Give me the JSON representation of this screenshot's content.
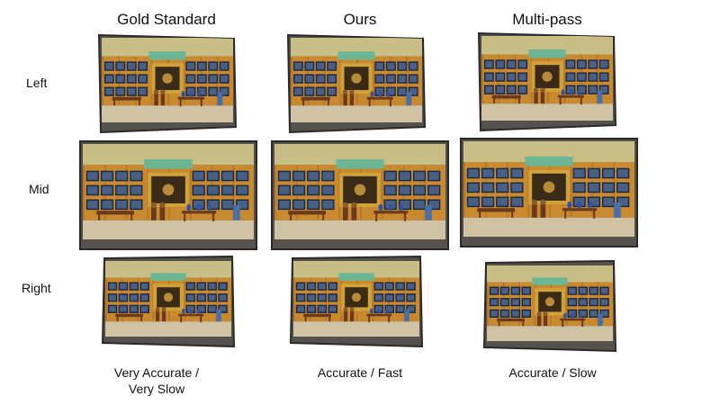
{
  "columns": [
    {
      "title": "Gold Standard",
      "caption_line1": "Very Accurate /",
      "caption_line2": "Very Slow"
    },
    {
      "title": "Ours",
      "caption_line1": "Accurate / Fast",
      "caption_line2": ""
    },
    {
      "title": "Multi-pass",
      "caption_line1": "Accurate / Slow",
      "caption_line2": ""
    }
  ],
  "rows": [
    {
      "label": "Left"
    },
    {
      "label": "Mid"
    },
    {
      "label": "Right"
    }
  ],
  "colors": {
    "bezel": "#55524d",
    "frame": "#2b2a28",
    "sky": "#c9bf86",
    "banner": "#6cb595",
    "wall": "#c98a2f",
    "wall_dark": "#a9691f",
    "painting": "#1d2a45",
    "painting_inner": "#5c78a3",
    "gold": "#d0a23a",
    "floor": "#cfc3a4",
    "furniture": "#6b3a1d",
    "vase": "#2f52a3"
  }
}
